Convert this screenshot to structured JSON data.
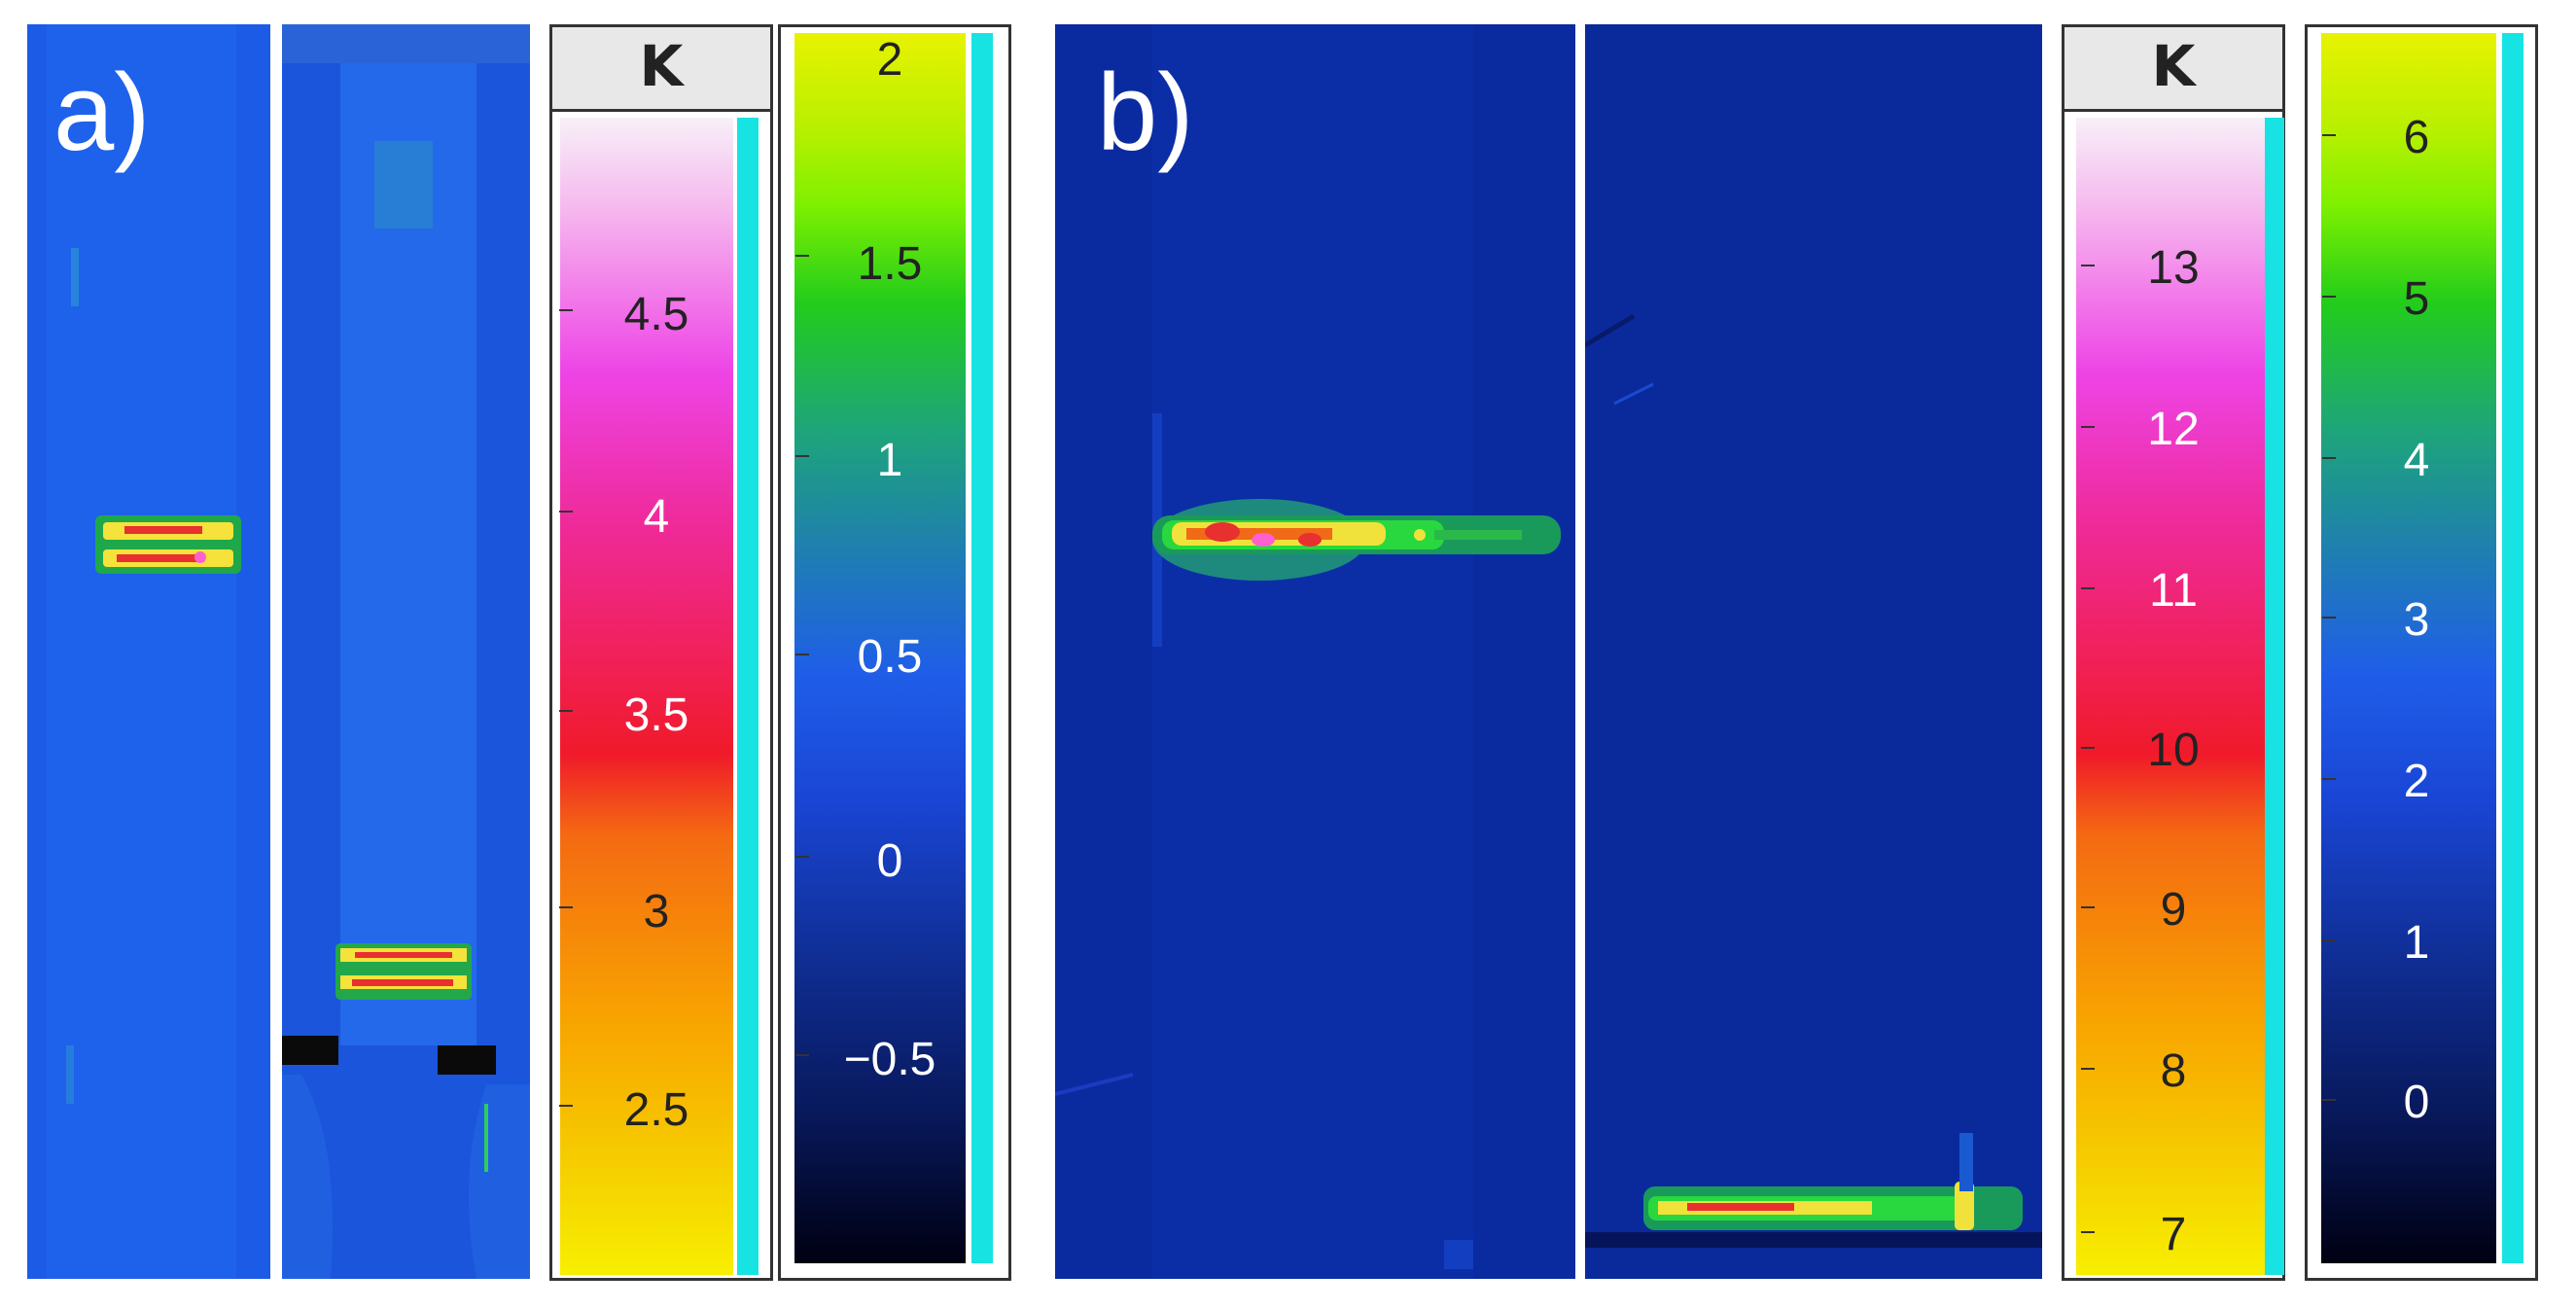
{
  "figure": {
    "panel_a_label": "a)",
    "panel_b_label": "b)"
  },
  "colorbar_a_temp": {
    "header": "K",
    "ticks": [
      "4.5",
      "4",
      "3.5",
      "3",
      "2.5"
    ]
  },
  "colorbar_a_diff": {
    "ticks": [
      "2",
      "1.5",
      "1",
      "0.5",
      "0",
      "−0.5"
    ]
  },
  "colorbar_b_temp": {
    "header": "K",
    "ticks": [
      "13",
      "12",
      "11",
      "10",
      "9",
      "8",
      "7"
    ]
  },
  "colorbar_b_diff": {
    "ticks": [
      "6",
      "5",
      "4",
      "3",
      "2",
      "1",
      "0"
    ]
  },
  "colors": {
    "thermal_background_a": "#1e5fe8",
    "thermal_background_b": "#0a2a9e",
    "colorbar_strip": "#18e3e3"
  }
}
